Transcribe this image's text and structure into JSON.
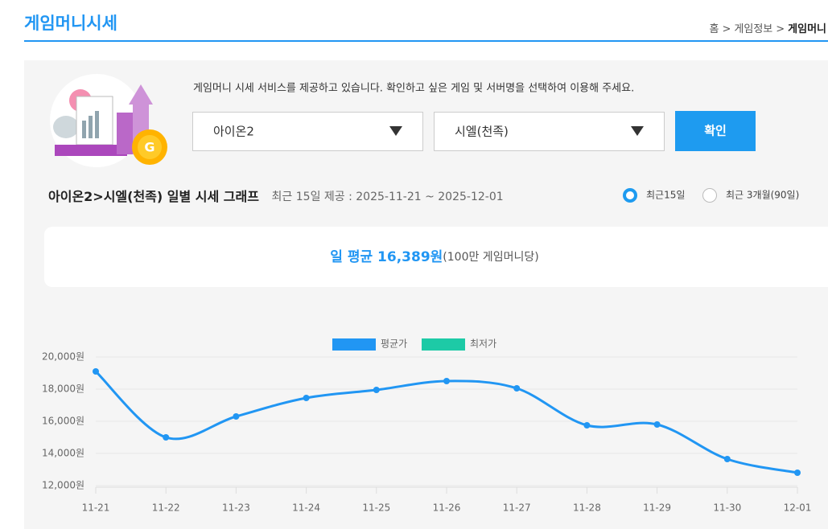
{
  "header": {
    "title": "게임머니시세",
    "breadcrumb": [
      "홈",
      ">",
      "게임정보",
      ">",
      "게임머니"
    ]
  },
  "intro": "게임머니 시세 서비스를 제공하고 있습니다. 확인하고 싶은 게임 및 서버명을 선택하여 이용해 주세요.",
  "selects": [
    "아이온2",
    "시엘(천족)"
  ],
  "button": "확인",
  "graph_title": "아이온2>시엘(천족) 일별 시세 그래프",
  "graph_subtitle": "최근 15일 제공 : 2025-11-21 ~ 2025-12-01",
  "radios": [
    {
      "label": "최근15일",
      "checked": true
    },
    {
      "label": "최근 3개월(90일)",
      "checked": false
    }
  ],
  "average": {
    "label": "일 평균 16,389원",
    "note": "(100만 게임머니당)"
  },
  "chart_data": {
    "type": "line",
    "categories": [
      "11-21",
      "11-22",
      "11-23",
      "11-24",
      "11-25",
      "11-26",
      "11-27",
      "11-28",
      "11-29",
      "11-30",
      "12-01"
    ],
    "series": [
      {
        "name": "평균가",
        "color": "#2196f3",
        "values": [
          19100,
          15000,
          16300,
          17450,
          17950,
          18500,
          18050,
          15750,
          15800,
          13650,
          12800
        ]
      },
      {
        "name": "최저가",
        "color": "#1dcaa6",
        "values": [
          null,
          null,
          null,
          null,
          null,
          null,
          null,
          null,
          null,
          null,
          null
        ]
      }
    ],
    "ylim": [
      12000,
      20000
    ],
    "yticks": [
      {
        "value": 12000,
        "label": "12,000원"
      },
      {
        "value": 14000,
        "label": "14,000원"
      },
      {
        "value": 16000,
        "label": "16,000원"
      },
      {
        "value": 18000,
        "label": "18,000원"
      },
      {
        "value": 20000,
        "label": "20,000원"
      }
    ],
    "grid": true,
    "legend": "top"
  }
}
